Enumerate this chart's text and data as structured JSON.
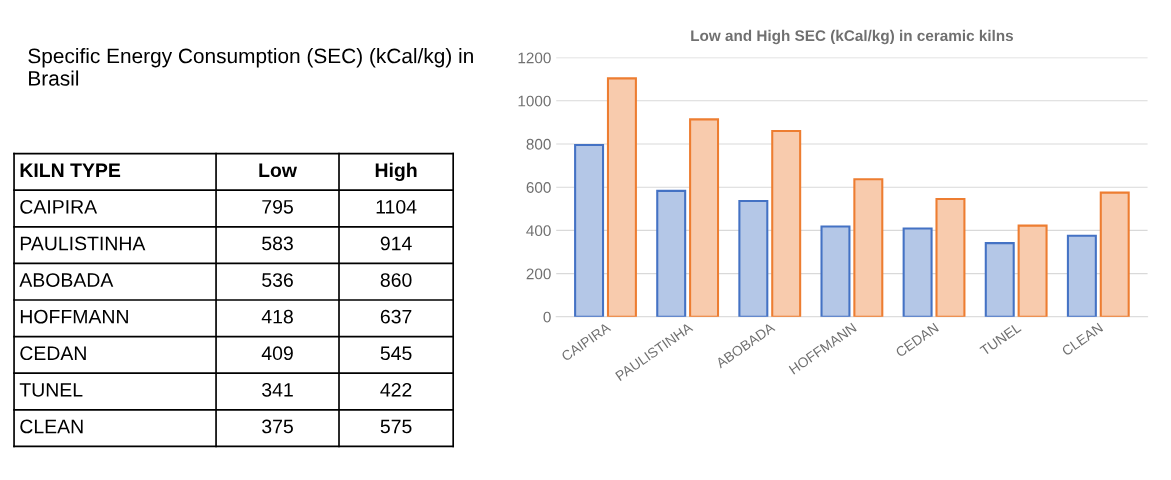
{
  "chart_data": [
    {
      "type": "other",
      "title": "Specific Energy Consumption (SEC) (kCal/kg) in Brasil",
      "annotations": [
        "KILN TYPE"
      ],
      "data_labels": true,
      "categories": [
        "CAIPIRA",
        "PAULISTINHA",
        "ABOBADA",
        "HOFFMANN",
        "CEDAN",
        "TUNEL",
        "CLEAN"
      ],
      "series": [
        {
          "name": "Low",
          "values": [
            795,
            583,
            536,
            418,
            409,
            341,
            375
          ]
        },
        {
          "name": "High",
          "values": [
            1104,
            914,
            860,
            637,
            545,
            422,
            575
          ]
        }
      ]
    },
    {
      "type": "bar",
      "title": "Low and High SEC (kCal/kg) in ceramic kilns",
      "categories": [
        "CAIPIRA",
        "PAULISTINHA",
        "ABOBADA",
        "HOFFMANN",
        "CEDAN",
        "TUNEL",
        "CLEAN"
      ],
      "series": [
        {
          "color": "#b4c7e7",
          "values": [
            795,
            583,
            536,
            418,
            409,
            341,
            375
          ]
        },
        {
          "color": "#f8cbad",
          "values": [
            1104,
            914,
            860,
            637,
            545,
            422,
            575
          ]
        }
      ],
      "ylim": [
        0,
        1200
      ],
      "yticks": [
        0,
        200,
        400,
        600,
        800,
        1000,
        1200
      ],
      "grid": "y"
    }
  ]
}
